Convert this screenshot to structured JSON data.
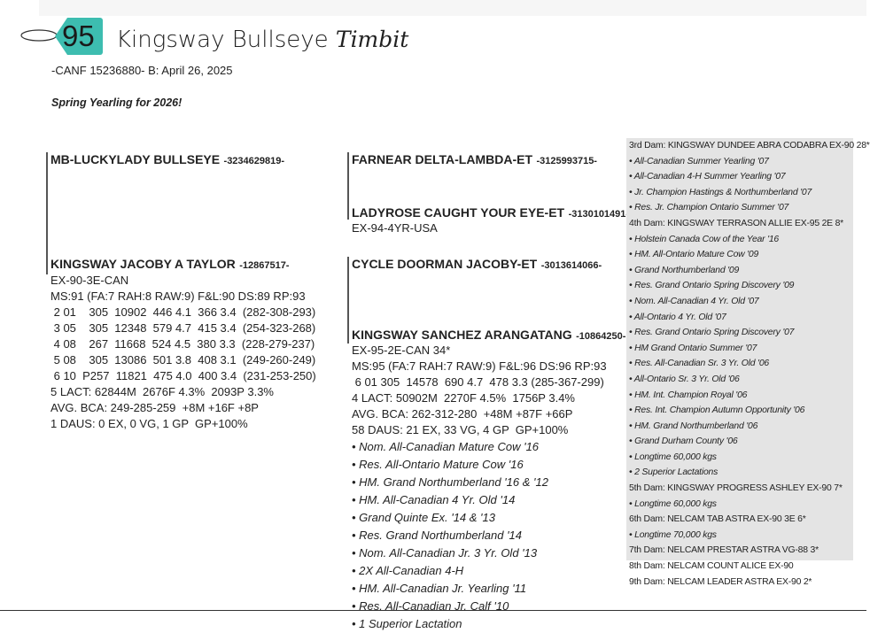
{
  "header": {
    "lot_number": "95",
    "name": "Kingsway Bullseye",
    "name_script": "Timbit",
    "reg_line": "-CANF 15236880-  B: April 26, 2025",
    "note": "Spring Yearling for 2026!"
  },
  "sire": {
    "name": "MB-LUCKYLADY BULLSEYE",
    "reg": "-3234629819-"
  },
  "dam": {
    "name": "KINGSWAY JACOBY A TAYLOR",
    "reg": "-12867517-",
    "lines": [
      "EX-90-3E-CAN",
      "MS:91 (FA:7 RAH:8 RAW:9) F&L:90 DS:89 RP:93",
      " 2 01    305  10902  446 4.1  366 3.4  (282-308-293)",
      " 3 05    305  12348  579 4.7  415 3.4  (254-323-268)",
      " 4 08    267  11668  524 4.5  380 3.3  (228-279-237)",
      " 5 08    305  13086  501 3.8  408 3.1  (249-260-249)",
      " 6 10  P257  11821  475 4.0  400 3.4  (231-253-250)",
      "5 LACT: 62844M  2676F 4.3%  2093P 3.3%",
      "AVG. BCA: 249-285-259  +8M +16F +8P",
      "1 DAUS: 0 EX, 0 VG, 1 GP  GP+100%"
    ]
  },
  "sire_sire": {
    "name": "FARNEAR DELTA-LAMBDA-ET",
    "reg": "-3125993715-"
  },
  "sire_dam": {
    "name": "LADYROSE CAUGHT YOUR EYE-ET",
    "reg": "-3130101491-",
    "lines": [
      "EX-94-4YR-USA"
    ]
  },
  "dam_sire": {
    "name": "CYCLE DOORMAN JACOBY-ET",
    "reg": "-3013614066-"
  },
  "dam_dam": {
    "name": "KINGSWAY SANCHEZ ARANGATANG",
    "reg": "-10864250-",
    "lines": [
      "EX-95-2E-CAN 34*",
      "MS:95 (FA:7 RAH:7 RAW:9) F&L:96 DS:96 RP:93",
      " 6 01 305  14578  690 4.7  478 3.3 (285-367-299)",
      "4 LACT: 50902M  2270F 4.5%  1756P 3.4%",
      "AVG. BCA: 262-312-280  +48M +87F +66P",
      "58 DAUS: 21 EX, 33 VG, 4 GP  GP+100%"
    ],
    "awards": [
      "• Nom. All-Canadian Mature Cow '16",
      "• Res. All-Ontario Mature Cow '16",
      "• HM. Grand Northumberland '16 & '12",
      "• HM. All-Canadian 4 Yr. Old '14",
      "• Grand Quinte Ex. '14 & '13",
      "• Res. Grand Northumberland '14",
      "• Nom. All-Canadian Jr. 3 Yr. Old '13",
      "• 2X All-Canadian 4-H",
      "• HM. All-Canadian Jr. Yearling '11",
      "• Res. All-Canadian Jr. Calf '10",
      "• 1 Superior Lactation"
    ]
  },
  "dam_family": [
    {
      "text": "3rd Dam: KINGSWAY DUNDEE ABRA CODABRA EX-90 28*",
      "italic": false
    },
    {
      "text": "• All-Canadian Summer Yearling '07",
      "italic": true
    },
    {
      "text": "• All-Canadian 4-H Summer Yearling '07",
      "italic": true
    },
    {
      "text": "• Jr. Champion Hastings & Northumberland '07",
      "italic": true
    },
    {
      "text": "• Res. Jr. Champion Ontario Summer '07",
      "italic": true
    },
    {
      "text": "4th Dam: KINGSWAY TERRASON ALLIE EX-95 2E 8*",
      "italic": false
    },
    {
      "text": "• Holstein Canada Cow of the Year '16",
      "italic": true
    },
    {
      "text": "• HM. All-Ontario Mature Cow '09",
      "italic": true
    },
    {
      "text": "• Grand Northumberland '09",
      "italic": true
    },
    {
      "text": "• Res. Grand Ontario Spring Discovery '09",
      "italic": true
    },
    {
      "text": "• Nom. All-Canadian 4 Yr. Old '07",
      "italic": true
    },
    {
      "text": "• All-Ontario 4 Yr. Old '07",
      "italic": true
    },
    {
      "text": "• Res. Grand Ontario Spring Discovery '07",
      "italic": true
    },
    {
      "text": "• HM Grand Ontario Summer '07",
      "italic": true
    },
    {
      "text": "• Res. All-Canadian Sr. 3 Yr. Old '06",
      "italic": true
    },
    {
      "text": "• All-Ontario Sr. 3 Yr. Old '06",
      "italic": true
    },
    {
      "text": "• HM. Int. Champion Royal '06",
      "italic": true
    },
    {
      "text": "• Res. Int. Champion Autumn Opportunity '06",
      "italic": true
    },
    {
      "text": "• HM. Grand Northumberland '06",
      "italic": true
    },
    {
      "text": "• Grand Durham County '06",
      "italic": true
    },
    {
      "text": "• Longtime 60,000 kgs",
      "italic": true
    },
    {
      "text": "• 2 Superior Lactations",
      "italic": true
    },
    {
      "text": "5th Dam: KINGSWAY PROGRESS ASHLEY EX-90 7*",
      "italic": false
    },
    {
      "text": "• Longtime 60,000 kgs",
      "italic": true
    },
    {
      "text": "6th Dam: NELCAM TAB ASTRA EX-90 3E 6*",
      "italic": false
    },
    {
      "text": "• Longtime 70,000 kgs",
      "italic": true
    },
    {
      "text": "7th Dam: NELCAM PRESTAR ASTRA VG-88 3*",
      "italic": false
    },
    {
      "text": "8th Dam: NELCAM COUNT ALICE EX-90",
      "italic": false
    },
    {
      "text": "9th Dam: NELCAM LEADER ASTRA EX-90 2*",
      "italic": false
    }
  ],
  "colors": {
    "tag": "#3dbdb0",
    "gray_box": "#e4e4e4"
  }
}
